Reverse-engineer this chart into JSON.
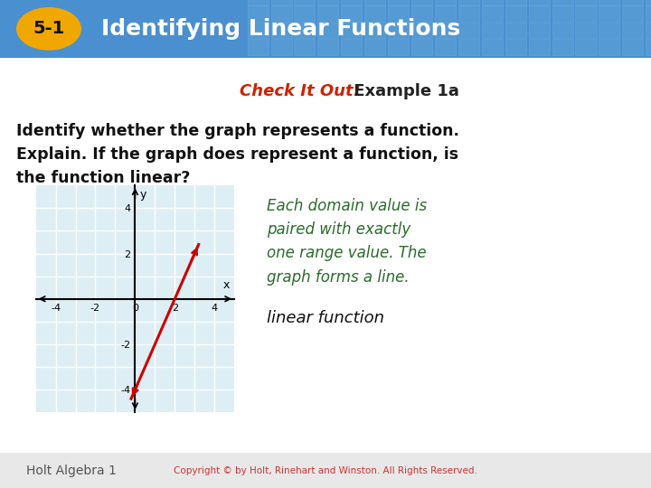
{
  "title_number": "5-1",
  "title_text": "Identifying Linear Functions",
  "subtitle_checkit": "Check It Out!",
  "subtitle_example": " Example 1a",
  "body_line1": "Identify whether the graph represents a function.",
  "body_line2": "Explain. If the graph does represent a function, is",
  "body_line3": "the function linear?",
  "italic_text": "Each domain value is\npaired with exactly\none range value. The\ngraph forms a line.",
  "answer_text": "linear function",
  "header_bg_left": "#4a8fd0",
  "header_bg_right": "#6aaee0",
  "badge_color": "#f0a800",
  "badge_text_color": "#111111",
  "title_color": "#ffffff",
  "checkit_color": "#cc2200",
  "example_color": "#222222",
  "body_color": "#111111",
  "italic_color": "#2a6b2a",
  "answer_color": "#111111",
  "graph_bg": "#ddeef5",
  "graph_line_color": "#cc0000",
  "graph_border_color": "#aaccdd",
  "copyright_text": "Holt Algebra 1",
  "copyright_right": "Copyright © by Holt, Rinehart and Winston. All Rights Reserved.",
  "copyright_color": "#555555",
  "copyright_right_color": "#cc3333",
  "footer_bg": "#e8e8e8",
  "white_bg": "#ffffff"
}
